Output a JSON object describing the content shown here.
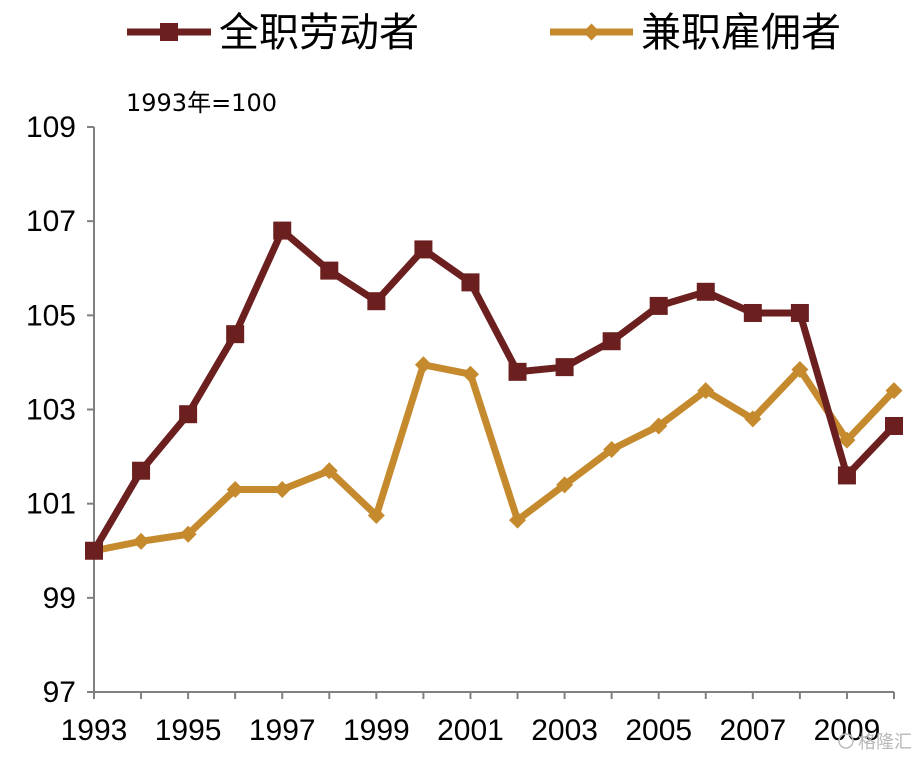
{
  "chart_data": {
    "type": "line",
    "note": "1993年=100",
    "x": [
      1993,
      1994,
      1995,
      1996,
      1997,
      1998,
      1999,
      2000,
      2001,
      2002,
      2003,
      2004,
      2005,
      2006,
      2007,
      2008,
      2009,
      2010
    ],
    "x_tick_labels": [
      "1993",
      "1995",
      "1997",
      "1999",
      "2001",
      "2003",
      "2005",
      "2007",
      "2009"
    ],
    "y_tick_labels": [
      "97",
      "99",
      "101",
      "103",
      "105",
      "107",
      "109"
    ],
    "ylim": [
      97,
      109
    ],
    "xlim": [
      1993,
      2010
    ],
    "grid": false,
    "legend_position": "top",
    "series": [
      {
        "name": "全职劳动者",
        "color": "#6b1f1f",
        "marker": "square",
        "values": [
          100.0,
          101.7,
          102.9,
          104.6,
          106.8,
          105.95,
          105.3,
          106.4,
          105.7,
          103.8,
          103.9,
          104.45,
          105.2,
          105.5,
          105.05,
          105.05,
          101.6,
          102.65
        ]
      },
      {
        "name": "兼职雇佣者",
        "color": "#c68a2e",
        "marker": "diamond",
        "values": [
          100.0,
          100.2,
          100.35,
          101.3,
          101.3,
          101.7,
          100.75,
          103.95,
          103.75,
          100.65,
          101.4,
          102.15,
          102.65,
          103.4,
          102.8,
          103.85,
          102.35,
          103.4
        ]
      }
    ]
  },
  "watermark": "格隆汇"
}
